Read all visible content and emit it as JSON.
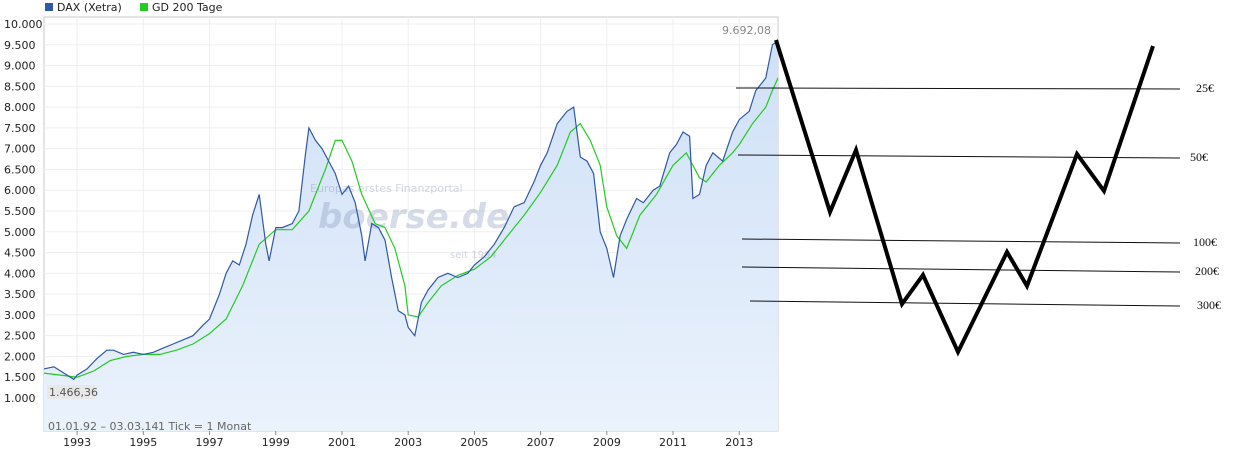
{
  "chart_data": {
    "type": "line",
    "legend": [
      {
        "name": "DAX (Xetra)",
        "color": "#2f58a8"
      },
      {
        "name": "GD 200 Tage",
        "color": "#22cc22"
      }
    ],
    "ylim": [
      0,
      10000
    ],
    "yticks": [
      "1.000",
      "1.500",
      "2.000",
      "2.500",
      "3.000",
      "3.500",
      "4.000",
      "4.500",
      "5.000",
      "5.500",
      "6.000",
      "6.500",
      "7.000",
      "7.500",
      "8.000",
      "8.500",
      "9.000",
      "9.500",
      "10.000"
    ],
    "ytick_values": [
      1000,
      1500,
      2000,
      2500,
      3000,
      3500,
      4000,
      4500,
      5000,
      5500,
      6000,
      6500,
      7000,
      7500,
      8000,
      8500,
      9000,
      9500,
      10000
    ],
    "xlim": [
      1992.0,
      2014.17
    ],
    "xticks": [
      "1993",
      "1995",
      "1997",
      "1999",
      "2001",
      "2003",
      "2005",
      "2007",
      "2009",
      "2011",
      "2013"
    ],
    "xtick_values": [
      1993,
      1995,
      1997,
      1999,
      2001,
      2003,
      2005,
      2007,
      2009,
      2011,
      2013
    ],
    "annotations": {
      "max_label": "9.692,08",
      "min_label": "1.466,36",
      "range_note": "01.01.92 – 03.03.14",
      "tick_note": "1 Tick = 1 Monat",
      "watermark_tagline": "Europas erstes Finanzportal",
      "watermark_brand": "boerse.de",
      "watermark_small": "seit 1994"
    },
    "series": [
      {
        "name": "DAX (Xetra)",
        "x": [
          1992.0,
          1992.3,
          1992.6,
          1992.9,
          1993.0,
          1993.3,
          1993.6,
          1993.9,
          1994.1,
          1994.4,
          1994.7,
          1995.0,
          1995.3,
          1995.6,
          1995.9,
          1996.2,
          1996.5,
          1996.8,
          1997.0,
          1997.3,
          1997.5,
          1997.7,
          1997.9,
          1998.1,
          1998.3,
          1998.5,
          1998.7,
          1998.8,
          1999.0,
          1999.2,
          1999.5,
          1999.7,
          1999.9,
          2000.0,
          2000.2,
          2000.4,
          2000.6,
          2000.8,
          2001.0,
          2001.2,
          2001.4,
          2001.6,
          2001.7,
          2001.9,
          2002.1,
          2002.3,
          2002.5,
          2002.7,
          2002.9,
          2003.0,
          2003.2,
          2003.4,
          2003.6,
          2003.9,
          2004.2,
          2004.5,
          2004.8,
          2005.0,
          2005.3,
          2005.6,
          2005.9,
          2006.2,
          2006.5,
          2006.8,
          2007.0,
          2007.2,
          2007.5,
          2007.8,
          2008.0,
          2008.2,
          2008.4,
          2008.6,
          2008.8,
          2009.0,
          2009.2,
          2009.4,
          2009.6,
          2009.9,
          2010.1,
          2010.4,
          2010.6,
          2010.9,
          2011.1,
          2011.3,
          2011.5,
          2011.6,
          2011.8,
          2012.0,
          2012.2,
          2012.5,
          2012.8,
          2013.0,
          2013.3,
          2013.5,
          2013.8,
          2014.0,
          2014.17
        ],
        "values": [
          1700,
          1750,
          1600,
          1450,
          1550,
          1700,
          1950,
          2150,
          2150,
          2050,
          2100,
          2050,
          2100,
          2200,
          2300,
          2400,
          2500,
          2750,
          2900,
          3500,
          4000,
          4300,
          4200,
          4700,
          5400,
          5900,
          4700,
          4300,
          5100,
          5100,
          5200,
          5500,
          6900,
          7500,
          7200,
          7000,
          6700,
          6400,
          5900,
          6100,
          5700,
          4900,
          4300,
          5200,
          5100,
          4800,
          3900,
          3100,
          3000,
          2700,
          2500,
          3300,
          3600,
          3900,
          4000,
          3900,
          4000,
          4200,
          4400,
          4700,
          5100,
          5600,
          5700,
          6200,
          6600,
          6900,
          7600,
          7900,
          8000,
          6800,
          6700,
          6400,
          5000,
          4600,
          3900,
          4900,
          5300,
          5800,
          5700,
          6000,
          6100,
          6900,
          7100,
          7400,
          7300,
          5800,
          5900,
          6600,
          6900,
          6700,
          7400,
          7700,
          7900,
          8400,
          8700,
          9500,
          9600
        ]
      },
      {
        "name": "GD 200 Tage",
        "x": [
          1992.0,
          1992.5,
          1993.0,
          1993.5,
          1994.0,
          1994.5,
          1995.0,
          1995.5,
          1996.0,
          1996.5,
          1997.0,
          1997.5,
          1998.0,
          1998.5,
          1999.0,
          1999.5,
          2000.0,
          2000.5,
          2000.8,
          2001.0,
          2001.3,
          2001.6,
          2002.0,
          2002.3,
          2002.6,
          2002.9,
          2003.0,
          2003.3,
          2003.6,
          2004.0,
          2004.5,
          2005.0,
          2005.5,
          2006.0,
          2006.5,
          2007.0,
          2007.5,
          2007.9,
          2008.2,
          2008.5,
          2008.8,
          2009.0,
          2009.3,
          2009.6,
          2010.0,
          2010.5,
          2011.0,
          2011.4,
          2011.8,
          2012.0,
          2012.4,
          2012.8,
          2013.0,
          2013.4,
          2013.8,
          2014.0,
          2014.17
        ],
        "values": [
          1600,
          1550,
          1500,
          1650,
          1900,
          2000,
          2050,
          2050,
          2150,
          2300,
          2550,
          2900,
          3700,
          4700,
          5050,
          5050,
          5500,
          6500,
          7200,
          7200,
          6700,
          5900,
          5200,
          5100,
          4600,
          3700,
          3000,
          2950,
          3300,
          3700,
          3950,
          4100,
          4400,
          4900,
          5400,
          5950,
          6600,
          7400,
          7600,
          7200,
          6600,
          5600,
          4900,
          4600,
          5400,
          5900,
          6600,
          6900,
          6300,
          6200,
          6600,
          6900,
          7100,
          7600,
          8000,
          8400,
          8700
        ]
      }
    ],
    "hand_drawn_labels": [
      "25€",
      "50€",
      "100€",
      "200€",
      "300€"
    ]
  }
}
